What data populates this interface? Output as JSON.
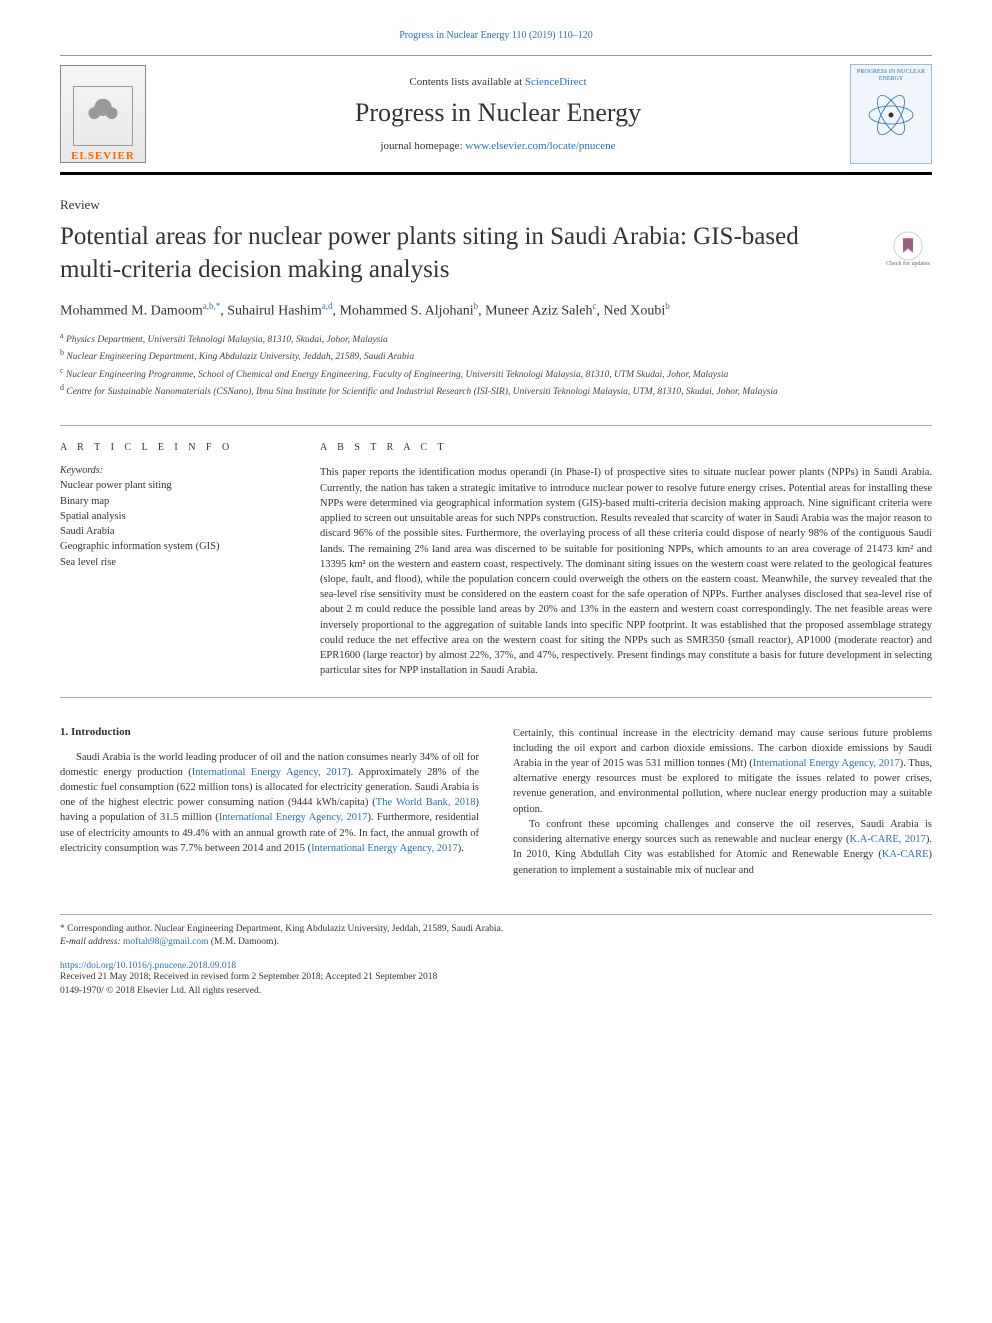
{
  "top_link": "Progress in Nuclear Energy 110 (2019) 110–120",
  "header": {
    "elsevier": "ELSEVIER",
    "contents_prefix": "Contents lists available at ",
    "sciencedirect": "ScienceDirect",
    "journal_name": "Progress in Nuclear Energy",
    "homepage_prefix": "journal homepage: ",
    "homepage_url": "www.elsevier.com/locate/pnucene",
    "cover_title": "PROGRESS IN NUCLEAR ENERGY"
  },
  "article_type": "Review",
  "title": "Potential areas for nuclear power plants siting in Saudi Arabia: GIS-based multi-criteria decision making analysis",
  "check_updates": "Check for updates",
  "authors_html": "Mohammed M. Damoom<sup>a,b,*</sup>, Suhairul Hashim<sup>a,d</sup>, Mohammed S. Aljohani<sup>b</sup>, Muneer Aziz Saleh<sup>c</sup>, Ned Xoubi<sup>b</sup>",
  "affiliations": [
    "a Physics Department, Universiti Teknologi Malaysia, 81310, Skudai, Johor, Malaysia",
    "b Nuclear Engineering Department, King Abdulaziz University, Jeddah, 21589, Saudi Arabia",
    "c Nuclear Engineering Programme, School of Chemical and Energy Engineering, Faculty of Engineering, Universiti Teknologi Malaysia, 81310, UTM Skudai, Johor, Malaysia",
    "d Centre for Sustainable Nanomaterials (CSNano), Ibnu Sina Institute for Scientific and Industrial Research (ISI-SIR), Universiti Teknologi Malaysia, UTM, 81310, Skudai, Johor, Malaysia"
  ],
  "article_info_head": "A R T I C L E  I N F O",
  "keywords_label": "Keywords:",
  "keywords": [
    "Nuclear power plant siting",
    "Binary map",
    "Spatial analysis",
    "Saudi Arabia",
    "Geographic information system (GIS)",
    "Sea level rise"
  ],
  "abstract_head": "A B S T R A C T",
  "abstract": "This paper reports the identification modus operandi (in Phase-I) of prospective sites to situate nuclear power plants (NPPs) in Saudi Arabia. Currently, the nation has taken a strategic imitative to introduce nuclear power to resolve future energy crises. Potential areas for installing these NPPs were determined via geographical information system (GIS)-based multi-criteria decision making approach. Nine significant criteria were applied to screen out unsuitable areas for such NPPs construction. Results revealed that scarcity of water in Saudi Arabia was the major reason to discard 96% of the possible sites. Furthermore, the overlaying process of all these criteria could dispose of nearly 98% of the contiguous Saudi lands. The remaining 2% land area was discerned to be suitable for positioning NPPs, which amounts to an area coverage of 21473 km² and 13395 km² on the western and eastern coast, respectively. The dominant siting issues on the western coast were related to the geological features (slope, fault, and flood), while the population concern could overweigh the others on the eastern coast. Meanwhile, the survey revealed that the sea-level rise sensitivity must be considered on the eastern coast for the safe operation of NPPs. Further analyses disclosed that sea-level rise of about 2 m could reduce the possible land areas by 20% and 13% in the eastern and western coast correspondingly. The net feasible areas were inversely proportional to the aggregation of suitable lands into specific NPP footprint. It was established that the proposed assemblage strategy could reduce the net effective area on the western coast for siting the NPPs such as SMR350 (small reactor), AP1000 (moderate reactor) and EPR1600 (large reactor) by almost 22%, 37%, and 47%, respectively. Present findings may constitute a basis for future development in selecting particular sites for NPP installation in Saudi Arabia.",
  "intro_head": "1. Introduction",
  "intro_left": "Saudi Arabia is the world leading producer of oil and the nation consumes nearly 34% of oil for domestic energy production (International Energy Agency, 2017). Approximately 28% of the domestic fuel consumption (622 million tons) is allocated for electricity generation. Saudi Arabia is one of the highest electric power consuming nation (9444 kWh/capita) (The World Bank, 2018) having a population of 31.5 million (International Energy Agency, 2017). Furthermore, residential use of electricity amounts to 49.4% with an annual growth rate of 2%. In fact, the annual growth of electricity consumption was 7.7% between 2014 and 2015 (International Energy Agency, 2017).",
  "intro_right_p1": "Certainly, this continual increase in the electricity demand may cause serious future problems including the oil export and carbon dioxide emissions. The carbon dioxide emissions by Saudi Arabia in the year of 2015 was 531 million tonnes (Mt) (International Energy Agency, 2017). Thus, alternative energy resources must be explored to mitigate the issues related to power crises, revenue generation, and environmental pollution, where nuclear energy production may a suitable option.",
  "intro_right_p2": "To confront these upcoming challenges and conserve the oil reserves, Saudi Arabia is considering alternative energy sources such as renewable and nuclear energy (K.A-CARE, 2017). In 2010, King Abdullah City was established for Atomic and Renewable Energy (KA-CARE) generation to implement a sustainable mix of nuclear and",
  "corresponding": "* Corresponding author. Nuclear Engineering Department, King Abdulaziz University, Jeddah, 21589, Saudi Arabia.",
  "email_label": "E-mail address: ",
  "email": "moftah98@gmail.com",
  "email_suffix": " (M.M. Damoom).",
  "doi": "https://doi.org/10.1016/j.pnucene.2018.09.018",
  "received": "Received 21 May 2018; Received in revised form 2 September 2018; Accepted 21 September 2018",
  "copyright": "0149-1970/ © 2018 Elsevier Ltd. All rights reserved.",
  "colors": {
    "link": "#2a6ebb",
    "text": "#333333",
    "elsevier_orange": "#ff6600",
    "rule": "#aaaaaa",
    "rule_heavy": "#000000"
  }
}
